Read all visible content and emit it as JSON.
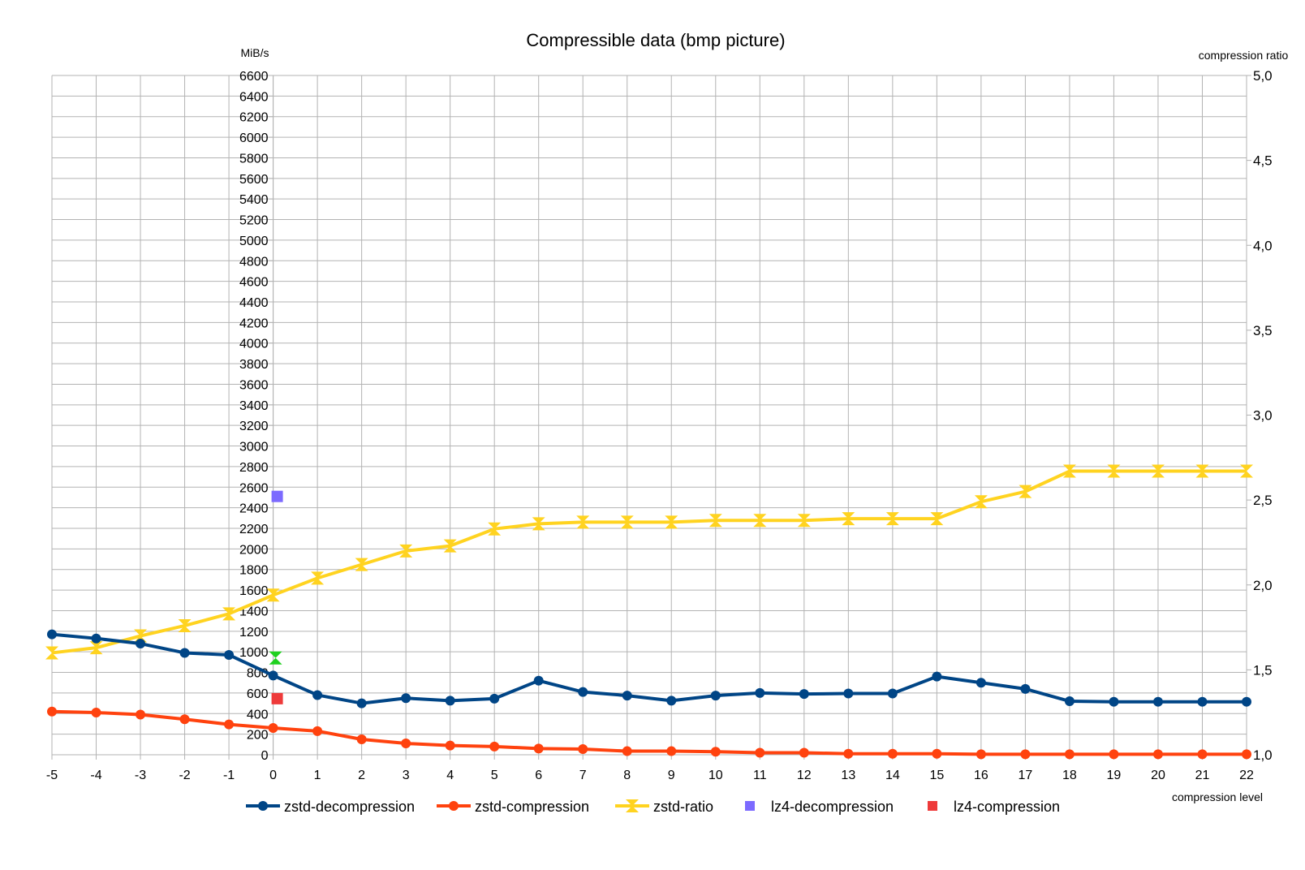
{
  "chart_data": {
    "type": "line",
    "title": "Compressible data (bmp picture)",
    "xlabel": "compression level",
    "ylabel_left": "MiB/s",
    "ylabel_right": "compression ratio",
    "x": [
      -5,
      -4,
      -3,
      -2,
      -1,
      0,
      1,
      2,
      3,
      4,
      5,
      6,
      7,
      8,
      9,
      10,
      11,
      12,
      13,
      14,
      15,
      16,
      17,
      18,
      19,
      20,
      21,
      22
    ],
    "x_tick_labels": [
      "-5",
      "-4",
      "-3",
      "-2",
      "-1",
      "0",
      "1",
      "2",
      "3",
      "4",
      "5",
      "6",
      "7",
      "8",
      "9",
      "10",
      "11",
      "12",
      "13",
      "14",
      "15",
      "16",
      "17",
      "18",
      "19",
      "20",
      "21",
      "22"
    ],
    "xlim": [
      -5,
      22
    ],
    "ylim_left": [
      0,
      6600
    ],
    "y_tick_step_left": 200,
    "ylim_right": [
      1.0,
      5.0
    ],
    "y_ticks_right": [
      "1,0",
      "1,5",
      "2,0",
      "2,5",
      "3,0",
      "3,5",
      "4,0",
      "4,5",
      "5,0"
    ],
    "grid": true,
    "legend_position": "bottom",
    "series": [
      {
        "name": "zstd-decompression",
        "axis": "left",
        "color": "#004586",
        "marker": "circle",
        "values": [
          1170,
          1130,
          1080,
          990,
          970,
          770,
          580,
          500,
          550,
          525,
          545,
          720,
          610,
          575,
          525,
          575,
          600,
          590,
          595,
          595,
          760,
          700,
          640,
          520,
          515,
          515,
          515,
          515
        ]
      },
      {
        "name": "zstd-compression",
        "axis": "left",
        "color": "#ff420e",
        "marker": "circle",
        "values": [
          420,
          410,
          390,
          345,
          295,
          260,
          230,
          150,
          110,
          90,
          80,
          60,
          55,
          35,
          35,
          30,
          20,
          20,
          10,
          10,
          10,
          5,
          5,
          5,
          5,
          5,
          5,
          5
        ]
      },
      {
        "name": "zstd-ratio",
        "axis": "right",
        "color": "#ffd320",
        "marker": "hourglass",
        "values": [
          1.6,
          1.63,
          1.7,
          1.76,
          1.83,
          1.94,
          2.04,
          2.12,
          2.2,
          2.23,
          2.33,
          2.36,
          2.37,
          2.37,
          2.37,
          2.38,
          2.38,
          2.38,
          2.39,
          2.39,
          2.39,
          2.49,
          2.55,
          2.67,
          2.67,
          2.67,
          2.67,
          2.67
        ]
      },
      {
        "name": "lz4-decompression",
        "axis": "left",
        "color": "#7c6aff",
        "marker": "square",
        "points": [
          {
            "x": 0,
            "y": 2510
          }
        ]
      },
      {
        "name": "lz4-compression",
        "axis": "left",
        "color": "#ee3a3a",
        "marker": "square",
        "points": [
          {
            "x": 0,
            "y": 545
          }
        ]
      }
    ],
    "extra_points": [
      {
        "axis": "right",
        "x": 0,
        "y": 1.57,
        "color": "#1fd11f",
        "marker": "hourglass"
      }
    ]
  }
}
